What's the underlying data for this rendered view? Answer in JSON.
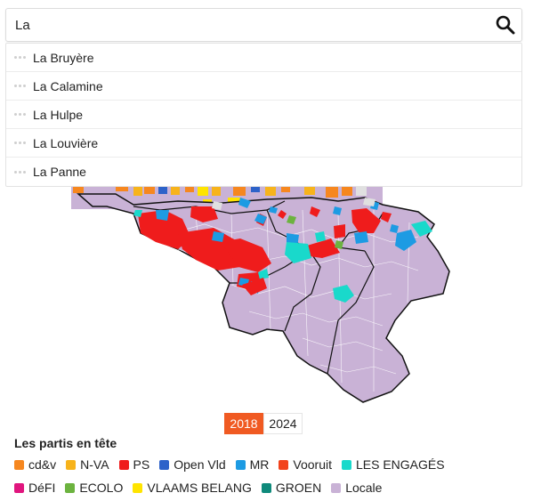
{
  "search": {
    "value": "La",
    "suggestions": [
      "La Bruyère",
      "La Calamine",
      "La Hulpe",
      "La Louvière",
      "La Panne"
    ]
  },
  "years": {
    "options": [
      "2018",
      "2024"
    ],
    "selected": "2018"
  },
  "legend": {
    "title": "Les partis en tête",
    "rows": [
      [
        {
          "label": "cd&v",
          "color": "#f6871f"
        },
        {
          "label": "N-VA",
          "color": "#f7b31b"
        },
        {
          "label": "PS",
          "color": "#ef1c1c"
        },
        {
          "label": "Open Vld",
          "color": "#2d62c9"
        },
        {
          "label": "MR",
          "color": "#1d9be3"
        },
        {
          "label": "Vooruit",
          "color": "#f2421b"
        },
        {
          "label": "LES ENGAGÉS",
          "color": "#19d9cb"
        }
      ],
      [
        {
          "label": "DéFI",
          "color": "#e0157e"
        },
        {
          "label": "ECOLO",
          "color": "#6cb33f"
        },
        {
          "label": "VLAAMS BELANG",
          "color": "#ffe400"
        },
        {
          "label": "GROEN",
          "color": "#0f8a7b"
        },
        {
          "label": "Locale",
          "color": "#c9b2d6"
        }
      ]
    ]
  }
}
